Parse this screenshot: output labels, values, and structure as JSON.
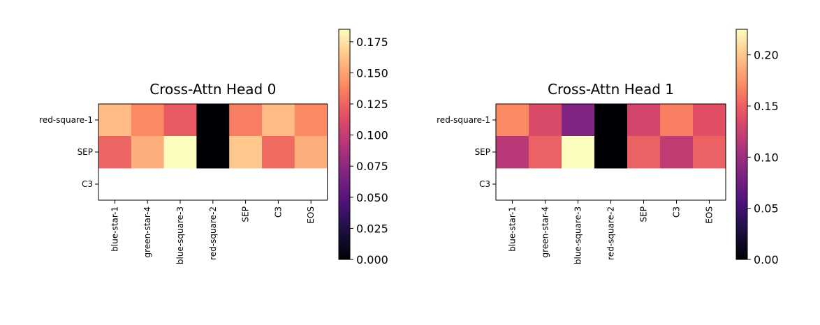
{
  "chart_data": [
    {
      "type": "heatmap",
      "title": "Cross-Attn Head 0",
      "row_labels": [
        "red-square-1",
        "SEP",
        "C3"
      ],
      "col_labels": [
        "blue-star-1",
        "green-star-4",
        "blue-square-3",
        "red-square-2",
        "SEP",
        "C3",
        "EOS"
      ],
      "values": [
        [
          0.16,
          0.14,
          0.12,
          0.0,
          0.135,
          0.16,
          0.14
        ],
        [
          0.125,
          0.155,
          0.185,
          0.0,
          0.165,
          0.128,
          0.155
        ],
        [
          null,
          null,
          null,
          null,
          null,
          null,
          null
        ]
      ],
      "colormap": "magma",
      "colorbar": {
        "range": [
          0,
          0.185
        ],
        "ticks": [
          0.0,
          0.025,
          0.05,
          0.075,
          0.1,
          0.125,
          0.15,
          0.175
        ],
        "tick_labels": [
          "0.000",
          "0.025",
          "0.050",
          "0.075",
          "0.100",
          "0.125",
          "0.150",
          "0.175"
        ]
      }
    },
    {
      "type": "heatmap",
      "title": "Cross-Attn Head 1",
      "row_labels": [
        "red-square-1",
        "SEP",
        "C3"
      ],
      "col_labels": [
        "blue-star-1",
        "green-star-4",
        "blue-square-3",
        "red-square-2",
        "SEP",
        "C3",
        "EOS"
      ],
      "values": [
        [
          0.17,
          0.135,
          0.085,
          0.0,
          0.13,
          0.165,
          0.14
        ],
        [
          0.115,
          0.15,
          0.225,
          0.0,
          0.15,
          0.12,
          0.15
        ],
        [
          null,
          null,
          null,
          null,
          null,
          null,
          null
        ]
      ],
      "colormap": "magma",
      "colorbar": {
        "range": [
          0,
          0.225
        ],
        "ticks": [
          0.0,
          0.05,
          0.1,
          0.15,
          0.2
        ],
        "tick_labels": [
          "0.00",
          "0.05",
          "0.10",
          "0.15",
          "0.20"
        ]
      }
    }
  ]
}
